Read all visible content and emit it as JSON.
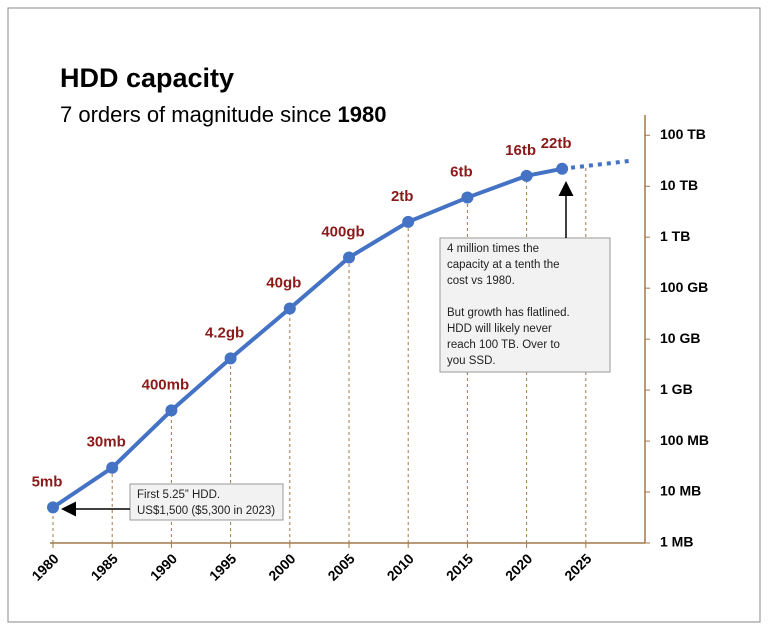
{
  "chart_data": {
    "type": "line",
    "title": "HDD capacity",
    "subtitle": {
      "text": "7 orders of magnitude since",
      "emphasis": "1980"
    },
    "x": [
      1980,
      1985,
      1990,
      1995,
      2000,
      2005,
      2010,
      2015,
      2020,
      2023
    ],
    "values": [
      5,
      30,
      400,
      4200,
      40000,
      400000,
      2000000,
      6000000,
      16000000,
      22000000
    ],
    "value_labels": [
      "5mb",
      "30mb",
      "400mb",
      "4.2gb",
      "40gb",
      "400gb",
      "2tb",
      "6tb",
      "16tb",
      "22tb"
    ],
    "projection": {
      "x": [
        2023,
        2029
      ],
      "values": [
        22000000,
        32000000
      ]
    },
    "color": "#4472c4",
    "label_color": "#8b1a1a",
    "axis_color": "#a0784a",
    "log_scale": true,
    "xlim": [
      1980,
      2030
    ],
    "xticks": [
      1980,
      1985,
      1990,
      1995,
      2000,
      2005,
      2010,
      2015,
      2020,
      2025
    ],
    "ylim": [
      1,
      250000000
    ],
    "yticks": [
      {
        "value": 1,
        "label": "1 MB"
      },
      {
        "value": 10,
        "label": "10 MB"
      },
      {
        "value": 100,
        "label": "100 MB"
      },
      {
        "value": 1000,
        "label": "1 GB"
      },
      {
        "value": 10000,
        "label": "10 GB"
      },
      {
        "value": 100000,
        "label": "100 GB"
      },
      {
        "value": 1000000,
        "label": "1 TB"
      },
      {
        "value": 10000000,
        "label": "10 TB"
      },
      {
        "value": 100000000,
        "label": "100 TB"
      }
    ],
    "annotations": [
      {
        "lines": [
          "First 5.25” HDD.",
          "US$1,500 ($5,300 in 2023)"
        ]
      },
      {
        "lines": [
          "4 million times the",
          "capacity at a tenth the",
          "cost vs 1980.",
          "",
          "But growth has flatlined.",
          "HDD will likely never",
          "reach 100 TB. Over to",
          "you SSD."
        ]
      }
    ]
  }
}
